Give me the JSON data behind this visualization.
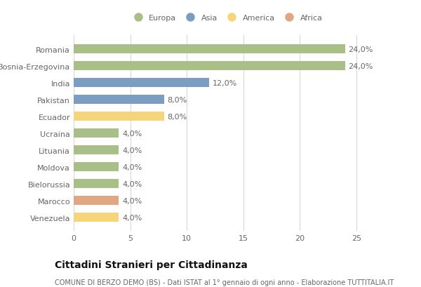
{
  "categories": [
    "Romania",
    "Bosnia-Erzegovina",
    "India",
    "Pakistan",
    "Ecuador",
    "Ucraina",
    "Lituania",
    "Moldova",
    "Bielorussia",
    "Marocco",
    "Venezuela"
  ],
  "values": [
    24.0,
    24.0,
    12.0,
    8.0,
    8.0,
    4.0,
    4.0,
    4.0,
    4.0,
    4.0,
    4.0
  ],
  "continents": [
    "Europa",
    "Europa",
    "Asia",
    "Asia",
    "America",
    "Europa",
    "Europa",
    "Europa",
    "Europa",
    "Africa",
    "America"
  ],
  "colors": {
    "Europa": "#a8bf87",
    "Asia": "#7b9dc2",
    "America": "#f5d47a",
    "Africa": "#e0a882"
  },
  "legend_order": [
    "Europa",
    "Asia",
    "America",
    "Africa"
  ],
  "xlim": [
    0,
    27
  ],
  "xticks": [
    0,
    5,
    10,
    15,
    20,
    25
  ],
  "title": "Cittadini Stranieri per Cittadinanza",
  "subtitle": "COMUNE DI BERZO DEMO (BS) - Dati ISTAT al 1° gennaio di ogni anno - Elaborazione TUTTITALIA.IT",
  "bg_color": "#ffffff",
  "grid_color": "#d8d8d8",
  "bar_height": 0.55,
  "label_fontsize": 8,
  "tick_fontsize": 8,
  "title_fontsize": 10,
  "subtitle_fontsize": 7
}
